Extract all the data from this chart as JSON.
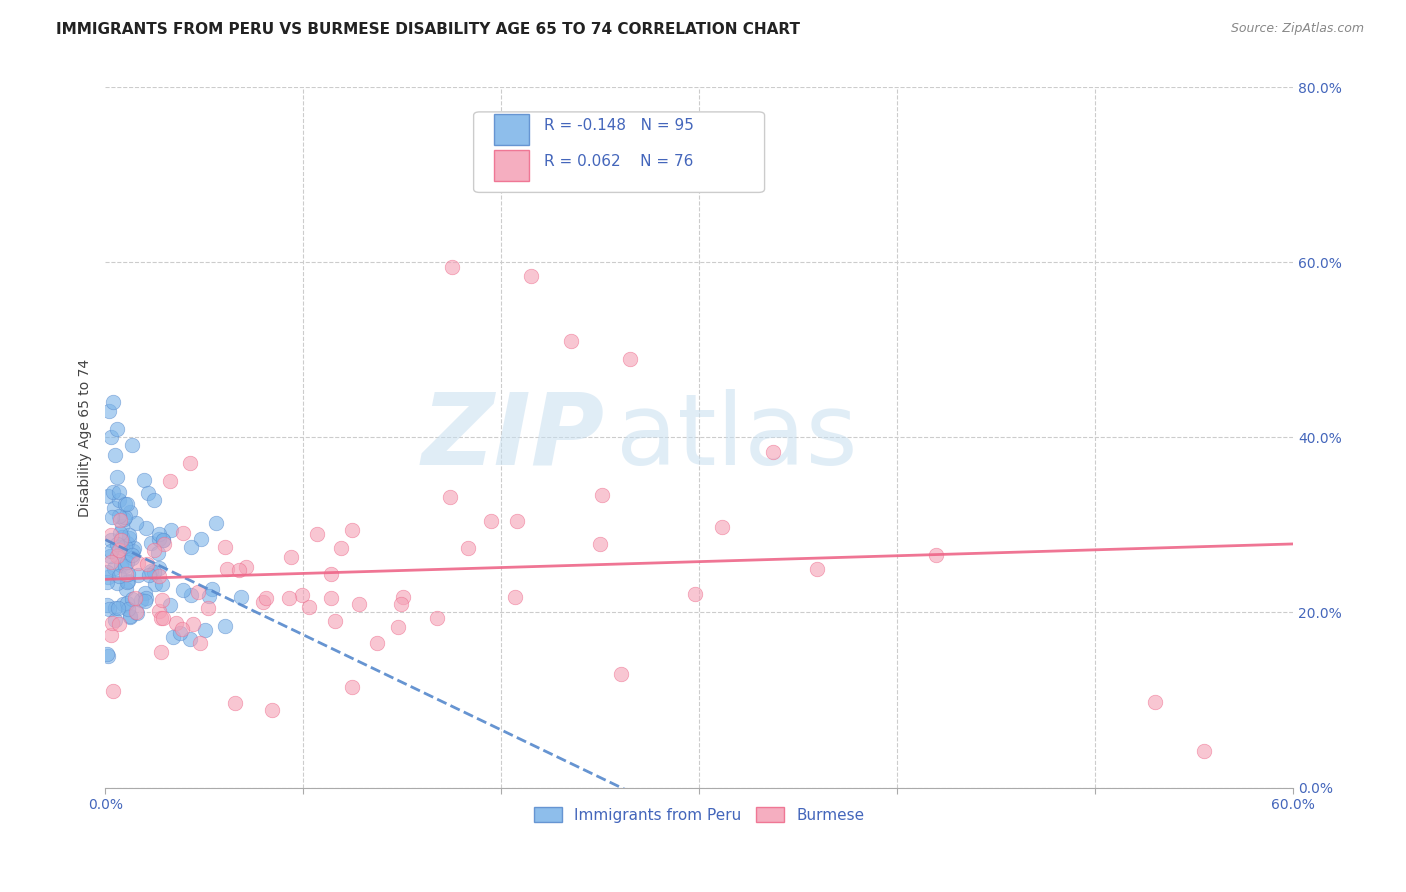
{
  "title": "IMMIGRANTS FROM PERU VS BURMESE DISABILITY AGE 65 TO 74 CORRELATION CHART",
  "source": "Source: ZipAtlas.com",
  "ylabel": "Disability Age 65 to 74",
  "legend_labels": [
    "Immigrants from Peru",
    "Burmese"
  ],
  "legend_r": [
    -0.148,
    0.062
  ],
  "legend_n": [
    95,
    76
  ],
  "xlim": [
    0.0,
    0.6
  ],
  "ylim": [
    0.0,
    0.8
  ],
  "xtick_positions": [
    0.0,
    0.1,
    0.2,
    0.3,
    0.4,
    0.5,
    0.6
  ],
  "xtick_labels_show": [
    "0.0%",
    "",
    "",
    "",
    "",
    "",
    "60.0%"
  ],
  "yticks": [
    0.0,
    0.2,
    0.4,
    0.6,
    0.8
  ],
  "ytick_labels": [
    "0.0%",
    "20.0%",
    "40.0%",
    "60.0%",
    "80.0%"
  ],
  "color_peru": "#7ab3e8",
  "color_burmese": "#f4a0b5",
  "trendline_peru_color": "#5588cc",
  "trendline_burmese_color": "#ee6688",
  "background_color": "#ffffff",
  "grid_color": "#cccccc",
  "axis_color": "#4466bb",
  "title_fontsize": 11,
  "axis_label_fontsize": 10,
  "tick_fontsize": 10,
  "legend_fontsize": 11,
  "watermark_zip": "ZIP",
  "watermark_atlas": "atlas",
  "watermark_color_zip": "#c8dff0",
  "watermark_color_atlas": "#c8dff0"
}
